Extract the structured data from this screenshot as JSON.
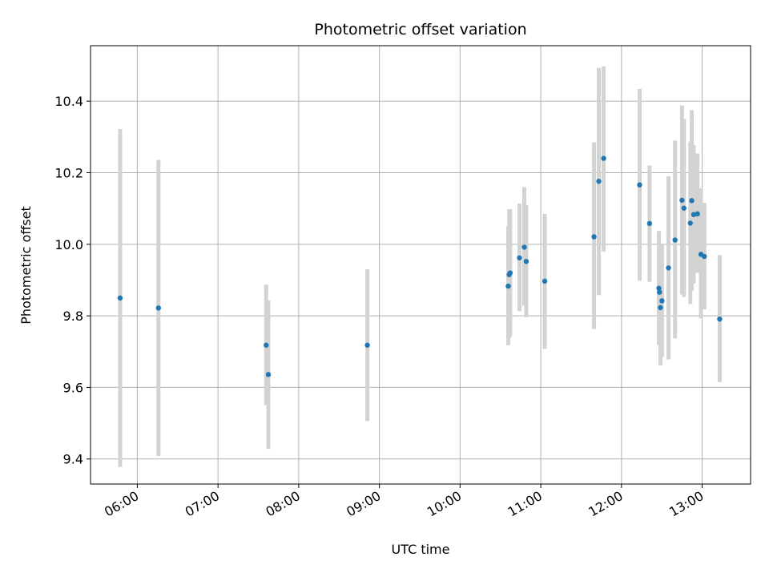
{
  "chart_data": {
    "type": "scatter",
    "title": "Photometric offset variation",
    "xlabel": "UTC time",
    "ylabel": "Photometric offset",
    "x_unit": "hours UTC",
    "xlim": [
      5.42,
      13.6
    ],
    "ylim": [
      9.33,
      10.555
    ],
    "grid": true,
    "point_color": "#1f77b4",
    "errorbar_color": "#d3d3d3",
    "x_ticks": [
      {
        "value": 6,
        "label": "06:00"
      },
      {
        "value": 7,
        "label": "07:00"
      },
      {
        "value": 8,
        "label": "08:00"
      },
      {
        "value": 9,
        "label": "09:00"
      },
      {
        "value": 10,
        "label": "10:00"
      },
      {
        "value": 11,
        "label": "11:00"
      },
      {
        "value": 12,
        "label": "12:00"
      },
      {
        "value": 13,
        "label": "13:00"
      }
    ],
    "y_ticks": [
      {
        "value": 9.4,
        "label": "9.4"
      },
      {
        "value": 9.6,
        "label": "9.6"
      },
      {
        "value": 9.8,
        "label": "9.8"
      },
      {
        "value": 10.0,
        "label": "10.0"
      },
      {
        "value": 10.2,
        "label": "10.2"
      },
      {
        "value": 10.4,
        "label": "10.4"
      }
    ],
    "series": [
      {
        "name": "offset",
        "points": [
          {
            "x": 5.787,
            "y": 9.85,
            "lo": 9.378,
            "hi": 10.322
          },
          {
            "x": 6.262,
            "y": 9.822,
            "lo": 9.408,
            "hi": 10.236
          },
          {
            "x": 7.597,
            "y": 9.718,
            "lo": 9.551,
            "hi": 9.887
          },
          {
            "x": 7.624,
            "y": 9.636,
            "lo": 9.428,
            "hi": 9.843
          },
          {
            "x": 8.851,
            "y": 9.718,
            "lo": 9.506,
            "hi": 9.93
          },
          {
            "x": 10.597,
            "y": 9.883,
            "lo": 9.718,
            "hi": 10.05
          },
          {
            "x": 10.609,
            "y": 9.915,
            "lo": 9.738,
            "hi": 10.098
          },
          {
            "x": 10.621,
            "y": 9.92,
            "lo": 9.743,
            "hi": 10.098
          },
          {
            "x": 10.736,
            "y": 9.962,
            "lo": 9.813,
            "hi": 10.114
          },
          {
            "x": 10.796,
            "y": 9.992,
            "lo": 9.828,
            "hi": 10.16
          },
          {
            "x": 10.82,
            "y": 9.952,
            "lo": 9.796,
            "hi": 10.11
          },
          {
            "x": 11.049,
            "y": 9.897,
            "lo": 9.708,
            "hi": 10.085
          },
          {
            "x": 11.66,
            "y": 10.021,
            "lo": 9.763,
            "hi": 10.285
          },
          {
            "x": 11.719,
            "y": 10.176,
            "lo": 9.858,
            "hi": 10.493
          },
          {
            "x": 11.779,
            "y": 10.24,
            "lo": 9.98,
            "hi": 10.497
          },
          {
            "x": 12.225,
            "y": 10.166,
            "lo": 9.898,
            "hi": 10.434
          },
          {
            "x": 12.348,
            "y": 10.058,
            "lo": 9.895,
            "hi": 10.22
          },
          {
            "x": 12.464,
            "y": 9.877,
            "lo": 9.718,
            "hi": 10.037
          },
          {
            "x": 12.471,
            "y": 9.866,
            "lo": 9.73,
            "hi": 10.0
          },
          {
            "x": 12.483,
            "y": 9.823,
            "lo": 9.662,
            "hi": 9.985
          },
          {
            "x": 12.502,
            "y": 9.842,
            "lo": 9.685,
            "hi": 10.0
          },
          {
            "x": 12.583,
            "y": 9.934,
            "lo": 9.678,
            "hi": 10.19
          },
          {
            "x": 12.664,
            "y": 10.012,
            "lo": 9.737,
            "hi": 10.29
          },
          {
            "x": 12.75,
            "y": 10.123,
            "lo": 9.86,
            "hi": 10.388
          },
          {
            "x": 12.774,
            "y": 10.101,
            "lo": 9.853,
            "hi": 10.35
          },
          {
            "x": 12.853,
            "y": 10.059,
            "lo": 9.833,
            "hi": 10.287
          },
          {
            "x": 12.871,
            "y": 10.122,
            "lo": 9.87,
            "hi": 10.375
          },
          {
            "x": 12.895,
            "y": 10.083,
            "lo": 9.891,
            "hi": 10.277
          },
          {
            "x": 12.942,
            "y": 10.085,
            "lo": 9.92,
            "hi": 10.254
          },
          {
            "x": 12.985,
            "y": 9.972,
            "lo": 9.793,
            "hi": 10.156
          },
          {
            "x": 13.027,
            "y": 9.966,
            "lo": 9.818,
            "hi": 10.116
          },
          {
            "x": 13.217,
            "y": 9.791,
            "lo": 9.615,
            "hi": 9.97
          }
        ]
      }
    ]
  }
}
